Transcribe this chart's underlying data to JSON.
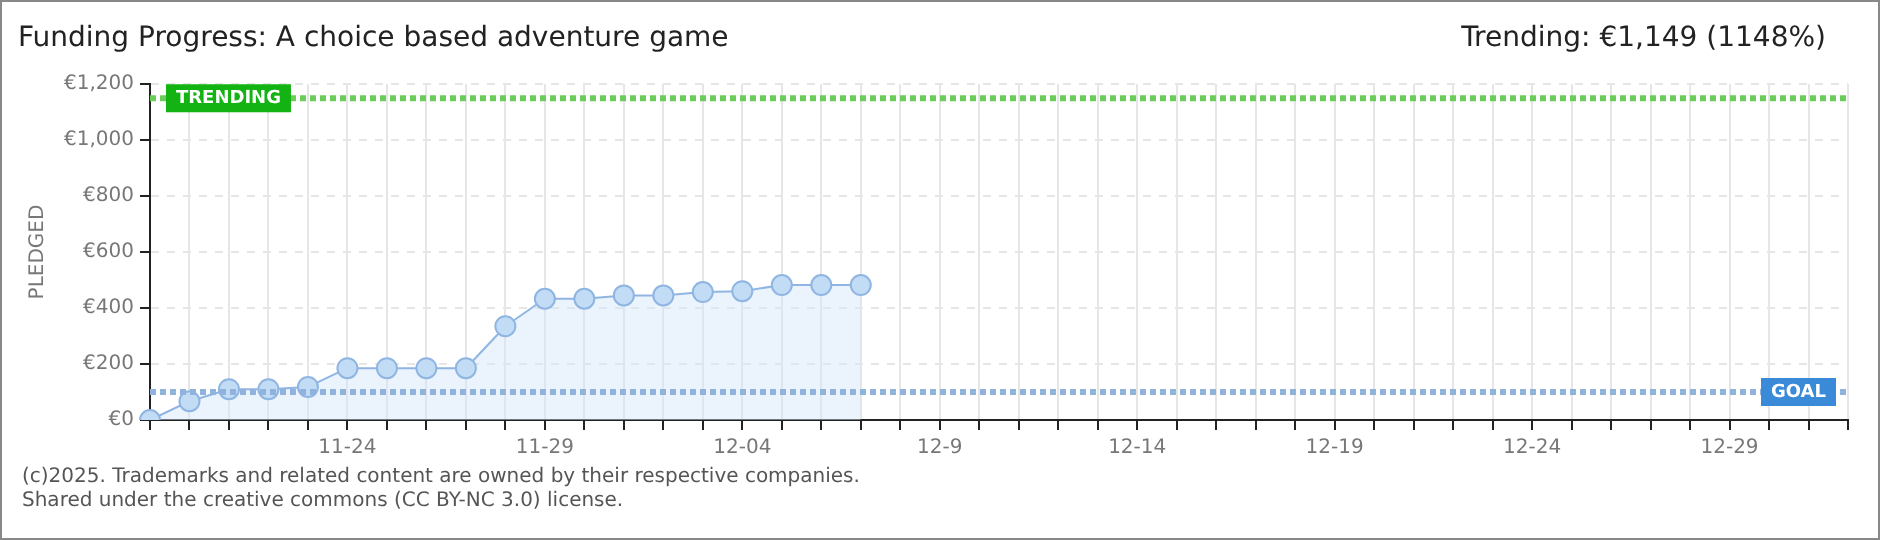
{
  "chart_data": {
    "type": "area",
    "title": "Funding Progress: A choice based adventure game",
    "subtitle": "Trending: €1,149 (1148%)",
    "ylabel": "PLEDGED",
    "categories": [
      null,
      null,
      null,
      null,
      null,
      "11-24",
      null,
      null,
      null,
      null,
      "11-29",
      null,
      null,
      null,
      null,
      "12-04",
      null,
      null,
      null,
      null,
      "12-9",
      null,
      null,
      null,
      null,
      "12-14",
      null,
      null,
      null,
      null,
      "12-19",
      null,
      null,
      null,
      null,
      "12-24",
      null,
      null,
      null,
      null,
      "12-29",
      null,
      null,
      null
    ],
    "series": [
      {
        "color": "#8fb5e3",
        "values": [
          0,
          67,
          110,
          110,
          118,
          185,
          185,
          185,
          185,
          335,
          433,
          433,
          445,
          445,
          457,
          460,
          482,
          482,
          482,
          null,
          null,
          null,
          null,
          null,
          null,
          null,
          null,
          null,
          null,
          null,
          null,
          null,
          null,
          null,
          null,
          null,
          null,
          null,
          null,
          null,
          null,
          null,
          null,
          null
        ]
      }
    ],
    "ylim": [
      0,
      1200
    ],
    "yticks": [
      {
        "value": 0,
        "label": "€0"
      },
      {
        "value": 200,
        "label": "€200"
      },
      {
        "value": 400,
        "label": "€400"
      },
      {
        "value": 600,
        "label": "€600"
      },
      {
        "value": 800,
        "label": "€800"
      },
      {
        "value": 1000,
        "label": "€1,000"
      },
      {
        "value": 1200,
        "label": "€1,200"
      }
    ],
    "ref_lines": [
      {
        "axis": "y",
        "value": 1149,
        "label": "TRENDING",
        "color": "#6ccc5a",
        "line_style": "dotted"
      },
      {
        "axis": "y",
        "value": 100,
        "label": "GOAL",
        "color": "#8fb3dc",
        "line_style": "dotted"
      }
    ],
    "grid": true,
    "legend": false,
    "marker": "circle",
    "annotations": [
      "(c)2025. Trademarks and related content are owned by their respective companies.",
      "Shared under the creative commons (CC BY-NC 3.0) license."
    ]
  }
}
